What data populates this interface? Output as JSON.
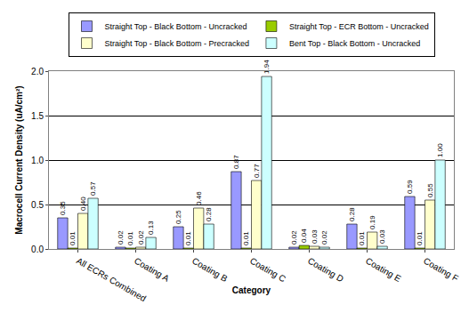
{
  "chart_data": {
    "type": "bar",
    "x_label": "Category",
    "y_label": "Macrocell Current Density (uA/cm²)",
    "categories": [
      "All ECRs Combined",
      "Coating A",
      "Coating B",
      "Coating C",
      "Coating D",
      "Coating E",
      "Coating F"
    ],
    "series": [
      {
        "name": "Straight Top - Black Bottom - Uncracked",
        "color": "#9999ff",
        "values": [
          0.35,
          0.02,
          0.25,
          0.87,
          0.02,
          0.28,
          0.59
        ],
        "value_labels": [
          "0.35",
          "0.02",
          "0.25",
          "0.87",
          "0.02",
          "0.28",
          "0.59"
        ]
      },
      {
        "name": "Straight Top - ECR Bottom - Uncracked",
        "color": "#99cc00",
        "values": [
          0.01,
          0.01,
          0.01,
          0.01,
          0.04,
          0.01,
          0.01
        ],
        "value_labels": [
          "0.01",
          "0.01",
          "0.01",
          "0.01",
          "0.04",
          "0.01",
          "0.01"
        ]
      },
      {
        "name": "Straight Top - Black Bottom - Precracked",
        "color": "#ffffcc",
        "values": [
          0.4,
          0.02,
          0.46,
          0.77,
          0.03,
          0.19,
          0.55
        ],
        "value_labels": [
          "0.40",
          "0.02",
          "0.46",
          "0.77",
          "0.03",
          "0.19",
          "0.55"
        ]
      },
      {
        "name": "Bent Top - Black Bottom - Uncracked",
        "color": "#ccffff",
        "values": [
          0.57,
          0.13,
          0.28,
          1.94,
          0.02,
          0.03,
          1.0
        ],
        "value_labels": [
          "0.57",
          "0.13",
          "0.28",
          "1.94",
          "0.02",
          "0.03",
          "1.00"
        ]
      }
    ],
    "ylim": [
      0,
      2
    ],
    "yticks": [
      {
        "value": 0,
        "label": "0.0"
      },
      0.5,
      {
        "value": 1,
        "label": "1.0"
      },
      1.5,
      {
        "value": 2,
        "label": "2.0"
      }
    ],
    "grid": true,
    "legend": "top",
    "data_labels": true
  }
}
